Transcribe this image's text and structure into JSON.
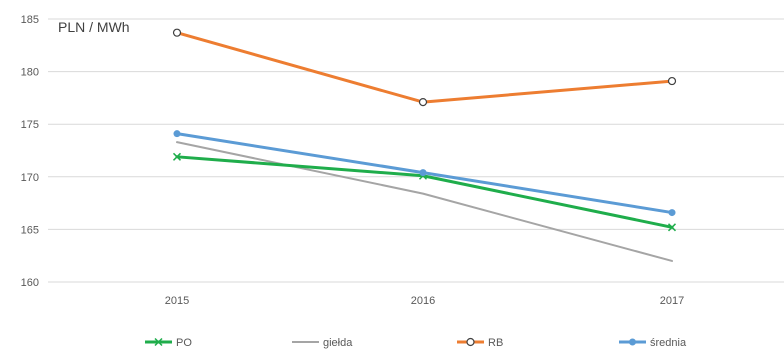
{
  "chart_data": {
    "type": "line",
    "unit_label": "PLN / MWh",
    "x": [
      "2015",
      "2016",
      "2017"
    ],
    "ylim": [
      160,
      185
    ],
    "yticks": [
      160,
      165,
      170,
      175,
      180,
      185
    ],
    "grid": true,
    "legend_position": "bottom",
    "series": [
      {
        "name": "PO",
        "values": [
          171.9,
          170.1,
          165.2
        ],
        "color": "#1fad4b",
        "marker": "x"
      },
      {
        "name": "giełda",
        "values": [
          173.3,
          168.4,
          162.0
        ],
        "color": "#a5a5a5",
        "marker": "none"
      },
      {
        "name": "RB",
        "values": [
          183.7,
          177.1,
          179.1
        ],
        "color": "#ed7d31",
        "marker": "circle"
      },
      {
        "name": "średnia",
        "values": [
          174.1,
          170.4,
          166.6
        ],
        "color": "#5b9bd5",
        "marker": "dot"
      }
    ]
  }
}
